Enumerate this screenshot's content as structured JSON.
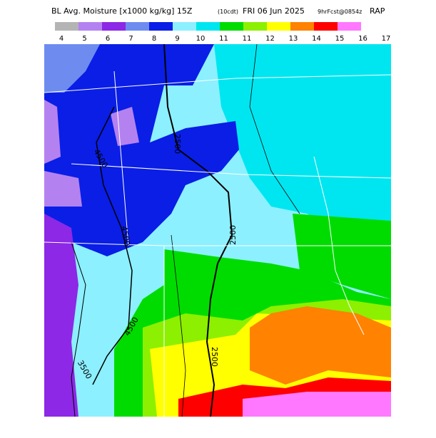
{
  "header": {
    "title": "BL Avg. Moisture [x1000 kg/kg] 15Z",
    "time_zone": "(10cdt)",
    "date": "FRI 06 Jun 2025",
    "forecast": "9hrFcst@0854z",
    "model": "RAP"
  },
  "colorbar": {
    "colors": [
      "#b4b4b4",
      "#b482f0",
      "#8c28e6",
      "#6e8cf0",
      "#0a1ee6",
      "#8cf0ff",
      "#00e6f0",
      "#00dc00",
      "#8cf000",
      "#ffff00",
      "#ff8200",
      "#ff0000",
      "#ff78ff"
    ],
    "labels": [
      "4",
      "5",
      "6",
      "7",
      "8",
      "9",
      "10",
      "11",
      "11",
      "12",
      "13",
      "14",
      "15",
      "16",
      "17"
    ]
  },
  "contour_labels": [
    "4500",
    "2500",
    "4500",
    "2500",
    "4500",
    "2500",
    "3500"
  ]
}
